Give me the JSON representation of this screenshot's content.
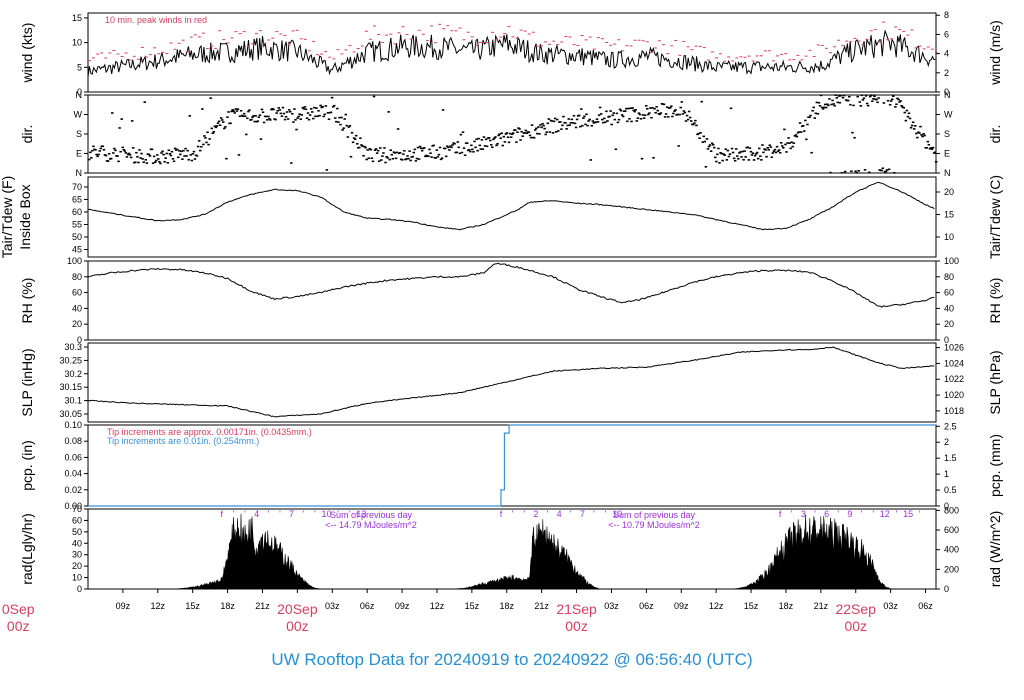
{
  "figure_title": "UW Rooftop Data for 20240919  to  20240922 @ 06:56:40  (UTC)",
  "colors": {
    "red": "#d6405f",
    "blue": "#3b8ed6",
    "purple": "#9b30d9",
    "title": "#2a8fd0"
  },
  "time_axis": {
    "start_hour": 6.0,
    "end_hour": 78.9,
    "tick_labels": [
      "09z",
      "12z",
      "15z",
      "18z",
      "21z",
      "20Sep",
      "03z",
      "06z",
      "09z",
      "12z",
      "15z",
      "18z",
      "21z",
      "21Sep",
      "03z",
      "06z",
      "09z",
      "12z",
      "15z",
      "18z",
      "21z",
      "22Sep",
      "03z",
      "06z"
    ],
    "day_labels": [
      {
        "hour": 0,
        "date": "0Sep",
        "time": "00z"
      },
      {
        "hour": 24,
        "date": "20Sep",
        "time": "00z"
      },
      {
        "hour": 48,
        "date": "21Sep",
        "time": "00z"
      },
      {
        "hour": 72,
        "date": "22Sep",
        "time": "00z"
      }
    ]
  },
  "chart_data": [
    {
      "type": "line",
      "panel": "wind",
      "ylabel_left": "wind (kts)",
      "ylabel_right": "wind (m/s)",
      "ylim": [
        0,
        16
      ],
      "yticks_left": [
        0,
        5,
        10,
        15
      ],
      "yticks_right": [
        0,
        2,
        4,
        6,
        8
      ],
      "annotation": "10 min. peak winds in red",
      "series": [
        {
          "x": [
            6,
            9,
            12,
            15,
            18,
            21,
            24,
            27,
            30,
            33,
            36,
            39,
            42,
            45,
            48,
            51,
            54,
            57,
            60,
            63,
            66,
            69,
            72,
            75,
            78.9
          ],
          "values": [
            4.2,
            5.2,
            6.3,
            7.6,
            8.1,
            9.0,
            8.1,
            4.4,
            8.0,
            9.2,
            9.1,
            8.2,
            9.7,
            7.7,
            7.4,
            6.4,
            7.2,
            6.3,
            4.9,
            5.1,
            5.0,
            5.3,
            8.6,
            10.0,
            6.4
          ]
        },
        {
          "x": [
            6,
            9,
            12,
            15,
            18,
            21,
            24,
            27,
            30,
            33,
            36,
            39,
            42,
            45,
            48,
            51,
            54,
            57,
            60,
            63,
            66,
            69,
            72,
            75,
            78.9
          ],
          "values": [
            6.5,
            7.5,
            8.6,
            10.1,
            10.8,
            11.5,
            10.6,
            6.8,
            11.3,
            11.9,
            12.0,
            11.3,
            12.6,
            10.0,
            9.9,
            9.2,
            9.8,
            8.9,
            7.2,
            7.6,
            7.4,
            8.3,
            11.5,
            12.5,
            8.8
          ]
        }
      ]
    },
    {
      "type": "scatter",
      "panel": "dir",
      "ylabel_left": "dir.",
      "ylabel_right": "dir.",
      "ylim": [
        0,
        360
      ],
      "yticks_left": [
        "N",
        "E",
        "S",
        "W",
        "N"
      ],
      "yticks_right": [
        "N",
        "E",
        "S",
        "W",
        "N"
      ],
      "series": [
        {
          "x": [
            6,
            9,
            12,
            15,
            18,
            21,
            24,
            27,
            30,
            33,
            36,
            39,
            42,
            45,
            48,
            51,
            54,
            57,
            60,
            63,
            66,
            69,
            72,
            75,
            78.9
          ],
          "values": [
            95,
            85,
            75,
            92,
            260,
            265,
            270,
            285,
            80,
            85,
            95,
            120,
            160,
            210,
            240,
            260,
            280,
            295,
            80,
            85,
            120,
            330,
            340,
            350,
            80
          ]
        }
      ]
    },
    {
      "type": "line",
      "panel": "temp",
      "ylabel_left": "Tair/Tdew (F)\nInside Box",
      "ylabel_right": "Tair/Tdew (C)",
      "ylim": [
        42,
        74
      ],
      "yticks_left": [
        45,
        50,
        55,
        60,
        65,
        70
      ],
      "yticks_right": [
        10,
        15,
        20
      ],
      "series": [
        {
          "x": [
            6,
            8,
            10,
            12,
            14,
            16,
            18,
            20,
            22,
            24,
            26,
            28,
            30,
            32,
            34,
            36,
            38,
            40,
            41,
            42,
            43,
            44,
            46,
            48,
            50,
            52,
            54,
            56,
            58,
            60,
            62,
            64,
            66,
            68,
            70,
            72,
            74,
            76,
            78,
            78.9
          ],
          "values": [
            61,
            59.5,
            58,
            56.5,
            57,
            59,
            64,
            67,
            69,
            68.5,
            66,
            60,
            57.5,
            57,
            56,
            54,
            53,
            55,
            57,
            59,
            61,
            64,
            64.5,
            63.5,
            63,
            62,
            61,
            60,
            59,
            57,
            55,
            53,
            53.5,
            57,
            62,
            68,
            72,
            68,
            63,
            61
          ]
        }
      ]
    },
    {
      "type": "line",
      "panel": "rh",
      "ylabel_left": "RH (%)",
      "ylabel_right": "RH (%)",
      "ylim": [
        0,
        100
      ],
      "yticks_left": [
        0,
        20,
        40,
        60,
        80,
        100
      ],
      "yticks_right": [
        0,
        20,
        40,
        60,
        80,
        100
      ],
      "series": [
        {
          "x": [
            6,
            8,
            10,
            12,
            14,
            16,
            18,
            20,
            22,
            24,
            26,
            28,
            30,
            32,
            34,
            36,
            38,
            40,
            41,
            42,
            43,
            44,
            46,
            48,
            50,
            52,
            54,
            56,
            58,
            60,
            62,
            64,
            66,
            68,
            70,
            72,
            74,
            76,
            78,
            78.9
          ],
          "values": [
            80,
            85,
            88,
            90,
            89,
            85,
            78,
            62,
            52,
            55,
            60,
            67,
            72,
            76,
            78,
            80,
            80,
            85,
            97,
            95,
            92,
            88,
            80,
            65,
            55,
            47,
            53,
            63,
            73,
            80,
            85,
            88,
            88,
            86,
            75,
            60,
            42,
            45,
            50,
            56
          ]
        }
      ]
    },
    {
      "type": "line",
      "panel": "slp",
      "ylabel_left": "SLP (inHg)",
      "ylabel_right": "SLP (hPa)",
      "ylim": [
        30.02,
        30.315
      ],
      "yticks_left": [
        30.05,
        30.1,
        30.15,
        30.2,
        30.25,
        30.3
      ],
      "yticks_right": [
        1018,
        1020,
        1022,
        1024,
        1026
      ],
      "series": [
        {
          "x": [
            6,
            10,
            14,
            18,
            22,
            26,
            30,
            34,
            38,
            42,
            46,
            50,
            54,
            58,
            62,
            66,
            68,
            70,
            72,
            74,
            76,
            78.9
          ],
          "values": [
            30.1,
            30.09,
            30.085,
            30.08,
            30.04,
            30.05,
            30.09,
            30.11,
            30.13,
            30.17,
            30.21,
            30.22,
            30.225,
            30.25,
            30.28,
            30.29,
            30.29,
            30.3,
            30.27,
            30.24,
            30.22,
            30.23
          ]
        }
      ]
    },
    {
      "type": "line",
      "panel": "pcp",
      "ylabel_left": "pcp. (in)",
      "ylabel_right": "pcp. (mm)",
      "ylim": [
        0,
        0.1
      ],
      "yticks_left": [
        0.0,
        0.02,
        0.04,
        0.06,
        0.08,
        0.1
      ],
      "yticks_left_labels": [
        "0.00",
        "0.02",
        "0.04",
        "0.06",
        "0.08",
        "0.10"
      ],
      "yticks_right": [
        0,
        0.5,
        1,
        1.5,
        2,
        2.5
      ],
      "annotations": [
        "Tip increments are approx. 0.00171in. (0.0435mm.)",
        "Tip increments are 0.01in. (0.254mm.)"
      ],
      "series": [
        {
          "x": [
            6,
            41.2,
            41.5,
            41.8,
            42.2,
            78.9
          ],
          "values": [
            0,
            0,
            0.02,
            0.09,
            0.1,
            0.1
          ]
        }
      ]
    },
    {
      "type": "area",
      "panel": "rad",
      "ylabel_left": "rad(Lgly/hr)",
      "ylabel_right": "rad (W/m^2)",
      "ylim": [
        0,
        70
      ],
      "yticks_left": [
        0,
        10,
        20,
        30,
        40,
        50,
        60,
        70
      ],
      "yticks_right": [
        0,
        200,
        400,
        600,
        800
      ],
      "daily_sum_labels": [
        {
          "line1": "Sum of previous day",
          "line2": "<-- 14.79 MJoules/m^2"
        },
        {
          "line1": "Sum of previous day",
          "line2": "<-- 10.79 MJoules/m^2"
        }
      ],
      "hour_markers": [
        {
          "values": [
            "f",
            "'",
            "'",
            "4",
            "'",
            "'",
            "7",
            "'",
            "'",
            "10",
            "'",
            "'",
            "13"
          ]
        },
        {
          "values": [
            "f",
            "'",
            "'",
            "2",
            "'",
            "4",
            "'",
            "7",
            "'",
            "'",
            "10"
          ]
        },
        {
          "values": [
            "f",
            "'",
            "3",
            "'",
            "6",
            "'",
            "9",
            "'",
            "'",
            "12",
            "'",
            "15",
            "'"
          ]
        }
      ],
      "series": [
        {
          "x": [
            13.5,
            14.5,
            15.5,
            16.5,
            17.5,
            18.5,
            19.0,
            19.5,
            20.0,
            20.5,
            21.0,
            21.5,
            22.0,
            22.5,
            23.0,
            23.5,
            24.0,
            24.5,
            25.0,
            25.5,
            26.0
          ],
          "values": [
            0,
            1,
            3,
            6,
            10,
            60,
            66,
            55,
            67,
            45,
            58,
            52,
            46,
            40,
            32,
            24,
            15,
            9,
            4,
            1,
            0
          ]
        },
        {
          "x": [
            37.5,
            38.5,
            39.5,
            40.5,
            41.5,
            42.5,
            43.5,
            44.0,
            44.3,
            44.6,
            45.0,
            45.5,
            46.0,
            46.5,
            47.0,
            47.5,
            48.0,
            48.5,
            49.0,
            49.5,
            50.0
          ],
          "values": [
            0,
            1,
            4,
            7,
            10,
            12,
            10,
            13,
            64,
            54,
            62,
            58,
            48,
            42,
            36,
            28,
            20,
            12,
            6,
            2,
            0
          ]
        },
        {
          "x": [
            61.5,
            62.5,
            63.5,
            64.5,
            65.5,
            66.5,
            67.5,
            68.5,
            69.5,
            70.5,
            71.5,
            72.5,
            73.5,
            74.0,
            74.5,
            75.0
          ],
          "values": [
            0,
            2,
            8,
            20,
            40,
            55,
            63,
            63,
            61,
            58,
            52,
            42,
            25,
            10,
            3,
            0
          ]
        }
      ]
    }
  ]
}
